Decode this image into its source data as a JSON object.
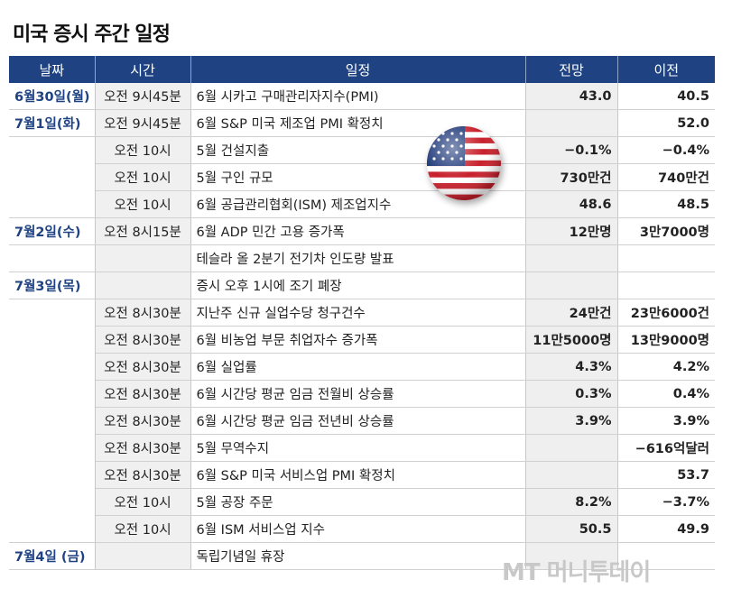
{
  "title": "미국 증시 주간 일정",
  "headers": {
    "date": "날짜",
    "time": "시간",
    "event": "일정",
    "forecast": "전망",
    "previous": "이전"
  },
  "rows": [
    {
      "date": "6월30일(월)",
      "time": "오전 9시45분",
      "event": "6월 시카고 구매관리자지수(PMI)",
      "forecast": "43.0",
      "previous": "40.5"
    },
    {
      "date": "7월1일(화)",
      "time": "오전 9시45분",
      "event": "6월 S&P 미국 제조업 PMI 확정치",
      "forecast": "",
      "previous": "52.0"
    },
    {
      "date": "",
      "time": "오전 10시",
      "event": "5월 건설지출",
      "forecast": "−0.1%",
      "previous": "−0.4%"
    },
    {
      "date": "",
      "time": "오전 10시",
      "event": "5월 구인 규모",
      "forecast": "730만건",
      "previous": "740만건"
    },
    {
      "date": "",
      "time": "오전 10시",
      "event": "6월 공급관리협회(ISM) 제조업지수",
      "forecast": "48.6",
      "previous": "48.5"
    },
    {
      "date": "7월2일(수)",
      "time": "오전 8시15분",
      "event": "6월 ADP 민간 고용 증가폭",
      "forecast": "12만명",
      "previous": "3만7000명"
    },
    {
      "date": "",
      "time": "",
      "event": "테슬라 올 2분기 전기차 인도량 발표",
      "forecast": "",
      "previous": ""
    },
    {
      "date": "7월3일(목)",
      "time": "",
      "event": "증시 오후 1시에 조기 폐장",
      "forecast": "",
      "previous": ""
    },
    {
      "date": "",
      "time": "오전 8시30분",
      "event": "지난주 신규 실업수당 청구건수",
      "forecast": "24만건",
      "previous": "23만6000건"
    },
    {
      "date": "",
      "time": "오전 8시30분",
      "event": "6월 비농업 부문 취업자수 증가폭",
      "forecast": "11만5000명",
      "previous": "13만9000명"
    },
    {
      "date": "",
      "time": "오전 8시30분",
      "event": "6월 실업률",
      "forecast": "4.3%",
      "previous": "4.2%"
    },
    {
      "date": "",
      "time": "오전 8시30분",
      "event": "6월 시간당 평균 임금 전월비 상승률",
      "forecast": "0.3%",
      "previous": "0.4%"
    },
    {
      "date": "",
      "time": "오전 8시30분",
      "event": "6월 시간당 평균 임금 전년비 상승률",
      "forecast": "3.9%",
      "previous": "3.9%"
    },
    {
      "date": "",
      "time": "오전 8시30분",
      "event": "5월 무역수지",
      "forecast": "",
      "previous": "−616억달러"
    },
    {
      "date": "",
      "time": "오전 8시30분",
      "event": "6월 S&P 미국 서비스업 PMI 확정치",
      "forecast": "",
      "previous": "53.7"
    },
    {
      "date": "",
      "time": "오전 10시",
      "event": "5월 공장 주문",
      "forecast": "8.2%",
      "previous": "−3.7%"
    },
    {
      "date": "",
      "time": "오전 10시",
      "event": "6월 ISM 서비스업 지수",
      "forecast": "50.5",
      "previous": "49.9"
    },
    {
      "date": "7월4일 (금)",
      "time": "",
      "event": "독립기념일 휴장",
      "forecast": "",
      "previous": ""
    }
  ],
  "watermark": "MT 머니투데이",
  "colors": {
    "header_bg": "#1e4282",
    "date_text": "#1e4282",
    "time_bg": "#f0f0f0",
    "forecast_bg": "#efefef"
  },
  "icons": {
    "flag": "us-flag-icon"
  }
}
